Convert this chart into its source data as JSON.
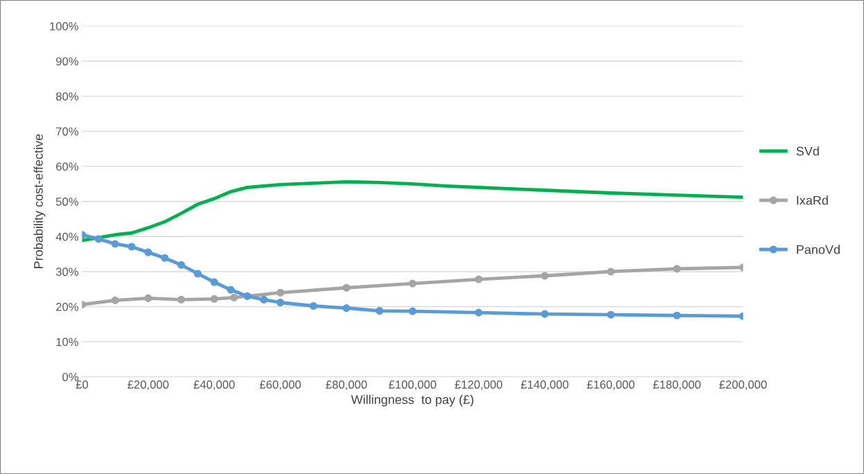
{
  "chart_data": {
    "type": "line",
    "xlabel": "Willingness  to pay (£)",
    "ylabel": "Probability cost-effective",
    "xlim": [
      0,
      200000
    ],
    "ylim": [
      0,
      100
    ],
    "xticks": [
      {
        "value": 0,
        "label": "£0"
      },
      {
        "value": 20000,
        "label": "£20,000"
      },
      {
        "value": 40000,
        "label": "£40,000"
      },
      {
        "value": 60000,
        "label": "£60,000"
      },
      {
        "value": 80000,
        "label": "£80,000"
      },
      {
        "value": 100000,
        "label": "£100,000"
      },
      {
        "value": 120000,
        "label": "£120,000"
      },
      {
        "value": 140000,
        "label": "£140,000"
      },
      {
        "value": 160000,
        "label": "£160,000"
      },
      {
        "value": 180000,
        "label": "£180,000"
      },
      {
        "value": 200000,
        "label": "£200,000"
      }
    ],
    "yticks": [
      {
        "value": 0,
        "label": "0%"
      },
      {
        "value": 10,
        "label": "10%"
      },
      {
        "value": 20,
        "label": "20%"
      },
      {
        "value": 30,
        "label": "30%"
      },
      {
        "value": 40,
        "label": "40%"
      },
      {
        "value": 50,
        "label": "50%"
      },
      {
        "value": 60,
        "label": "60%"
      },
      {
        "value": 70,
        "label": "70%"
      },
      {
        "value": 80,
        "label": "80%"
      },
      {
        "value": 90,
        "label": "90%"
      },
      {
        "value": 100,
        "label": "100%"
      }
    ],
    "grid": "y",
    "legend": "right",
    "series": [
      {
        "name": "SVd",
        "color": "#00b050",
        "marker": "none",
        "x": [
          0,
          5000,
          10000,
          15000,
          20000,
          25000,
          30000,
          35000,
          40000,
          45000,
          50000,
          60000,
          70000,
          80000,
          90000,
          100000,
          110000,
          120000,
          140000,
          160000,
          180000,
          200000
        ],
        "values": [
          38.9,
          39.7,
          40.5,
          41,
          42.5,
          44.2,
          46.6,
          49.2,
          50.8,
          52.8,
          54,
          54.8,
          55.2,
          55.6,
          55.4,
          55,
          54.4,
          54,
          53.2,
          52.4,
          51.8,
          51.2
        ]
      },
      {
        "name": "IxaRd",
        "color": "#a5a5a5",
        "marker": "circle",
        "x": [
          0,
          10000,
          20000,
          30000,
          40000,
          46000,
          60000,
          80000,
          100000,
          120000,
          140000,
          160000,
          180000,
          200000
        ],
        "values": [
          20.6,
          21.8,
          22.4,
          22,
          22.2,
          22.6,
          24,
          25.4,
          26.6,
          27.8,
          28.8,
          30,
          30.8,
          31.2
        ]
      },
      {
        "name": "PanoVd",
        "color": "#5b9bd5",
        "marker": "circle",
        "x": [
          0,
          5000,
          10000,
          15000,
          20000,
          25000,
          30000,
          35000,
          40000,
          45000,
          50000,
          55000,
          60000,
          70000,
          80000,
          90000,
          100000,
          120000,
          140000,
          160000,
          180000,
          200000
        ],
        "values": [
          40.5,
          39.3,
          37.9,
          37.1,
          35.5,
          33.9,
          31.9,
          29.4,
          27,
          24.8,
          23,
          22,
          21.2,
          20.2,
          19.6,
          18.8,
          18.7,
          18.3,
          17.9,
          17.7,
          17.5,
          17.3
        ]
      }
    ]
  }
}
